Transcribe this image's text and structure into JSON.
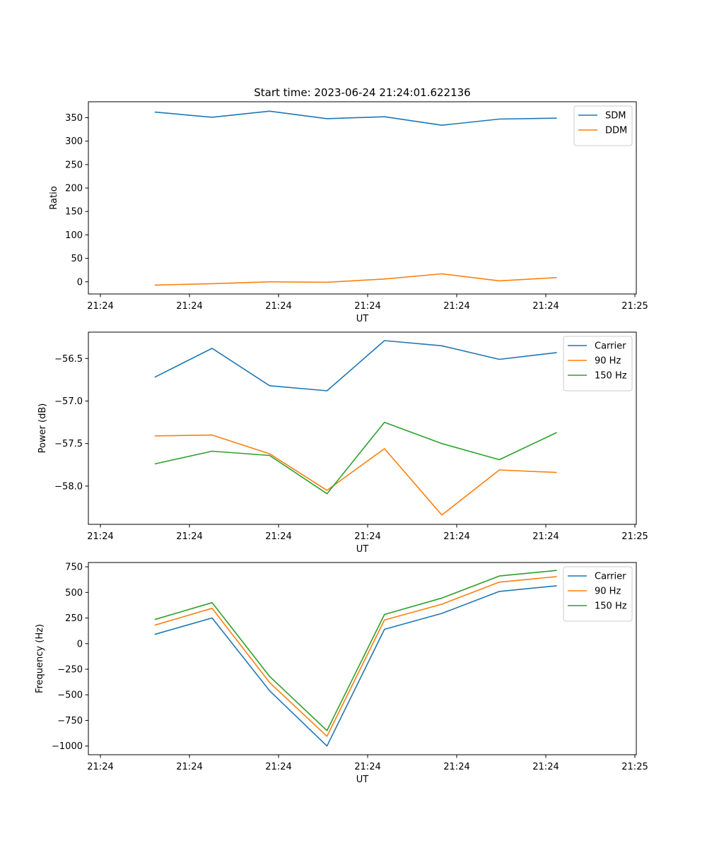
{
  "title": "Start time: 2023-06-24 21:24:01.622136",
  "colors": {
    "blue": "#1f77b4",
    "orange": "#ff7f0e",
    "green": "#2ca02c"
  },
  "chart_data": [
    {
      "type": "line",
      "xlabel": "UT",
      "ylabel": "Ratio",
      "x_ticks": [
        "21:24",
        "21:24",
        "21:24",
        "21:24",
        "21:24",
        "21:24",
        "21:25"
      ],
      "y_ticks": [
        0,
        50,
        100,
        150,
        200,
        250,
        300,
        350
      ],
      "ylim": [
        -26,
        384
      ],
      "legend_position": "upper right",
      "x": [
        0.5,
        1.15,
        1.8,
        2.45,
        3.1,
        3.75,
        4.4,
        5.05
      ],
      "series": [
        {
          "name": "SDM",
          "color": "#1f77b4",
          "values": [
            362,
            351,
            364,
            348,
            352,
            334,
            347,
            349
          ]
        },
        {
          "name": "DDM",
          "color": "#ff7f0e",
          "values": [
            -7,
            -4,
            0,
            -1,
            6,
            17,
            2,
            9
          ]
        }
      ]
    },
    {
      "type": "line",
      "xlabel": "UT",
      "ylabel": "Power (dB)",
      "x_ticks": [
        "21:24",
        "21:24",
        "21:24",
        "21:24",
        "21:24",
        "21:24",
        "21:25"
      ],
      "y_ticks": [
        -56.5,
        -57.0,
        -57.5,
        -58.0
      ],
      "ylim": [
        -58.45,
        -56.19
      ],
      "legend_position": "upper right",
      "x": [
        0.5,
        1.15,
        1.8,
        2.45,
        3.1,
        3.75,
        4.4,
        5.05
      ],
      "series": [
        {
          "name": "Carrier",
          "color": "#1f77b4",
          "values": [
            -56.72,
            -56.38,
            -56.82,
            -56.88,
            -56.29,
            -56.35,
            -56.51,
            -56.43
          ]
        },
        {
          "name": "90 Hz",
          "color": "#ff7f0e",
          "values": [
            -57.41,
            -57.4,
            -57.62,
            -58.05,
            -57.56,
            -58.34,
            -57.81,
            -57.84
          ]
        },
        {
          "name": "150 Hz",
          "color": "#2ca02c",
          "values": [
            -57.74,
            -57.59,
            -57.64,
            -58.09,
            -57.25,
            -57.5,
            -57.69,
            -57.37
          ]
        }
      ]
    },
    {
      "type": "line",
      "xlabel": "UT",
      "ylabel": "Frequency (Hz)",
      "x_ticks": [
        "21:24",
        "21:24",
        "21:24",
        "21:24",
        "21:24",
        "21:24",
        "21:25"
      ],
      "y_ticks": [
        750,
        500,
        250,
        0,
        -250,
        -500,
        -750,
        -1000
      ],
      "ylim": [
        -1085,
        792
      ],
      "legend_position": "upper right",
      "x": [
        0.5,
        1.15,
        1.8,
        2.45,
        3.1,
        3.75,
        4.4,
        5.05
      ],
      "series": [
        {
          "name": "Carrier",
          "color": "#1f77b4",
          "values": [
            90,
            250,
            -460,
            -1000,
            140,
            295,
            510,
            565
          ]
        },
        {
          "name": "90 Hz",
          "color": "#ff7f0e",
          "values": [
            180,
            345,
            -380,
            -905,
            230,
            385,
            600,
            655
          ]
        },
        {
          "name": "150 Hz",
          "color": "#2ca02c",
          "values": [
            235,
            400,
            -320,
            -850,
            285,
            445,
            660,
            715
          ]
        }
      ]
    }
  ]
}
